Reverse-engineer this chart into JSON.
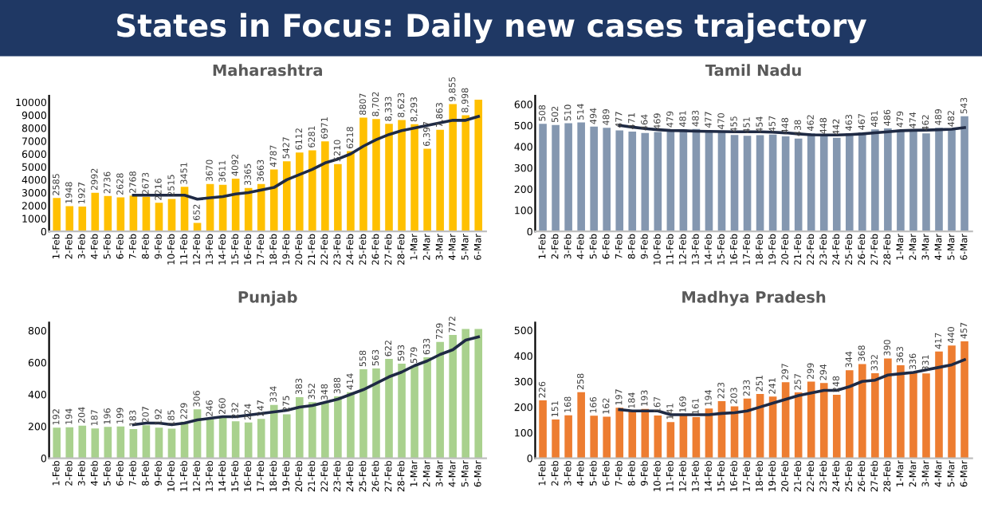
{
  "chart_data": [
    {
      "type": "other",
      "title": "States in Focus: Daily new cases trajectory",
      "color": "#1f3864"
    },
    {
      "type": "bar",
      "title": "Maharashtra",
      "categories": [
        "1-Feb",
        "2-Feb",
        "3-Feb",
        "4-Feb",
        "5-Feb",
        "6-Feb",
        "7-Feb",
        "8-Feb",
        "9-Feb",
        "10-Feb",
        "11-Feb",
        "12-Feb",
        "13-Feb",
        "14-Feb",
        "15-Feb",
        "16-Feb",
        "17-Feb",
        "18-Feb",
        "19-Feb",
        "20-Feb",
        "21-Feb",
        "22-Feb",
        "23-Feb",
        "24-Feb",
        "25-Feb",
        "26-Feb",
        "27-Feb",
        "28-Feb",
        "1-Mar",
        "2-Mar",
        "3-Mar",
        "4-Mar",
        "5-Mar",
        "6-Mar"
      ],
      "ylim": [
        0,
        10500
      ],
      "yticks": [
        0,
        1000,
        2000,
        3000,
        4000,
        5000,
        6000,
        7000,
        8000,
        9000,
        10000
      ],
      "series": [
        {
          "type": "bar",
          "color": "#ffc000",
          "values": [
            2585,
            1948,
            1927,
            2992,
            2736,
            2628,
            2768,
            2673,
            2216,
            2515,
            3451,
            652,
            3670,
            3611,
            4092,
            3365,
            3663,
            4787,
            5427,
            6112,
            6281,
            6971,
            5210,
            6218,
            8807,
            8702,
            8333,
            8623,
            8293,
            6397,
            7863,
            9855,
            8998,
            10200
          ],
          "value_labels": [
            "2585",
            "1948",
            "1927",
            "2992",
            "2736",
            "2628",
            "2768",
            "2673",
            "2216",
            "2515",
            "3451",
            "652",
            "3670",
            "3611",
            "4092",
            "3365",
            "3663",
            "4787",
            "5427",
            "6112",
            "6281",
            "6971",
            "5210",
            "6218",
            "8807",
            "8,702",
            "8,333",
            "8,623",
            "8,293",
            "6,397",
            "7,863",
            "9,855",
            "8,998",
            null
          ]
        },
        {
          "type": "line",
          "color": "#1f2a44",
          "values": [
            null,
            null,
            null,
            null,
            null,
            null,
            2800,
            2800,
            2800,
            2800,
            2800,
            2500,
            2600,
            2700,
            2900,
            3000,
            3200,
            3400,
            4000,
            4400,
            4800,
            5300,
            5600,
            6000,
            6600,
            7100,
            7500,
            7800,
            8000,
            8200,
            8400,
            8600,
            8600,
            8900
          ]
        }
      ]
    },
    {
      "type": "bar",
      "title": "Tamil Nadu",
      "categories": [
        "1-Feb",
        "2-Feb",
        "3-Feb",
        "4-Feb",
        "5-Feb",
        "6-Feb",
        "7-Feb",
        "8-Feb",
        "9-Feb",
        "10-Feb",
        "11-Feb",
        "12-Feb",
        "13-Feb",
        "14-Feb",
        "15-Feb",
        "16-Feb",
        "17-Feb",
        "18-Feb",
        "19-Feb",
        "20-Feb",
        "21-Feb",
        "22-Feb",
        "23-Feb",
        "24-Feb",
        "25-Feb",
        "26-Feb",
        "27-Feb",
        "28-Feb",
        "1-Mar",
        "2-Mar",
        "3-Mar",
        "4-Mar",
        "5-Mar",
        "6-Mar"
      ],
      "ylim": [
        0,
        640
      ],
      "yticks": [
        0,
        100,
        200,
        300,
        400,
        500,
        600
      ],
      "series": [
        {
          "type": "bar",
          "color": "#8497b0",
          "values": [
            508,
            502,
            510,
            514,
            494,
            489,
            477,
            471,
            464,
            469,
            479,
            481,
            483,
            477,
            470,
            455,
            451,
            454,
            457,
            448,
            438,
            462,
            448,
            442,
            463,
            467,
            481,
            486,
            479,
            474,
            462,
            489,
            482,
            543
          ],
          "value_labels": [
            "508",
            "502",
            "510",
            "514",
            "494",
            "489",
            "477",
            "471",
            "464",
            "469",
            "479",
            "481",
            "483",
            "477",
            "470",
            "455",
            "451",
            "454",
            "457",
            "448",
            "438",
            "462",
            "448",
            "442",
            "463",
            "467",
            "481",
            "486",
            "479",
            "474",
            "462",
            "489",
            "482",
            "543"
          ]
        },
        {
          "type": "line",
          "color": "#1f2a44",
          "values": [
            null,
            null,
            null,
            null,
            null,
            null,
            500,
            492,
            485,
            480,
            476,
            475,
            473,
            472,
            471,
            470,
            470,
            470,
            468,
            465,
            460,
            456,
            455,
            455,
            457,
            460,
            465,
            470,
            475,
            477,
            478,
            480,
            482,
            490
          ]
        }
      ]
    },
    {
      "type": "bar",
      "title": "Punjab",
      "categories": [
        "1-Feb",
        "2-Feb",
        "3-Feb",
        "4-Feb",
        "5-Feb",
        "6-Feb",
        "7-Feb",
        "8-Feb",
        "9-Feb",
        "10-Feb",
        "11-Feb",
        "12-Feb",
        "13-Feb",
        "14-Feb",
        "15-Feb",
        "16-Feb",
        "17-Feb",
        "18-Feb",
        "19-Feb",
        "20-Feb",
        "21-Feb",
        "22-Feb",
        "23-Feb",
        "24-Feb",
        "25-Feb",
        "26-Feb",
        "27-Feb",
        "28-Feb",
        "1-Mar",
        "2-Mar",
        "3-Mar",
        "4-Mar",
        "5-Mar",
        "6-Mar"
      ],
      "ylim": [
        0,
        850
      ],
      "yticks": [
        0,
        200,
        400,
        600,
        800
      ],
      "series": [
        {
          "type": "bar",
          "color": "#a9d18e",
          "values": [
            192,
            194,
            204,
            187,
            196,
            199,
            183,
            207,
            192,
            185,
            229,
            306,
            246,
            260,
            232,
            224,
            247,
            334,
            275,
            383,
            352,
            348,
            388,
            414,
            558,
            563,
            622,
            593,
            579,
            633,
            729,
            772,
            810,
            810
          ],
          "value_labels": [
            "192",
            "194",
            "204",
            "187",
            "196",
            "199",
            "183",
            "207",
            "192",
            "185",
            "229",
            "306",
            "246",
            "260",
            "232",
            "224",
            "247",
            "334",
            "275",
            "383",
            "352",
            "348",
            "388",
            "414",
            "558",
            "563",
            "622",
            "593",
            "579",
            "633",
            "729",
            "772",
            null,
            null
          ]
        },
        {
          "type": "line",
          "color": "#1f2a44",
          "values": [
            null,
            null,
            null,
            null,
            null,
            null,
            210,
            220,
            220,
            210,
            220,
            240,
            250,
            260,
            260,
            270,
            280,
            290,
            300,
            320,
            330,
            350,
            370,
            400,
            430,
            470,
            510,
            540,
            580,
            610,
            650,
            680,
            740,
            760
          ]
        }
      ]
    },
    {
      "type": "bar",
      "title": "Madhya Pradesh",
      "categories": [
        "1-Feb",
        "2-Feb",
        "3-Feb",
        "4-Feb",
        "5-Feb",
        "6-Feb",
        "7-Feb",
        "8-Feb",
        "9-Feb",
        "10-Feb",
        "11-Feb",
        "12-Feb",
        "13-Feb",
        "14-Feb",
        "15-Feb",
        "16-Feb",
        "17-Feb",
        "18-Feb",
        "19-Feb",
        "20-Feb",
        "21-Feb",
        "22-Feb",
        "23-Feb",
        "24-Feb",
        "25-Feb",
        "26-Feb",
        "27-Feb",
        "28-Feb",
        "1-Mar",
        "2-Mar",
        "3-Mar",
        "4-Mar",
        "5-Mar",
        "6-Mar"
      ],
      "ylim": [
        0,
        530
      ],
      "yticks": [
        0,
        100,
        200,
        300,
        400,
        500
      ],
      "series": [
        {
          "type": "bar",
          "color": "#ed7d31",
          "values": [
            226,
            151,
            168,
            258,
            166,
            162,
            197,
            184,
            193,
            167,
            141,
            169,
            161,
            194,
            223,
            203,
            233,
            251,
            241,
            297,
            257,
            299,
            294,
            248,
            344,
            368,
            332,
            390,
            363,
            336,
            331,
            417,
            440,
            457
          ],
          "value_labels": [
            "226",
            "151",
            "168",
            "258",
            "166",
            "162",
            "197",
            "184",
            "193",
            "167",
            "141",
            "169",
            "161",
            "194",
            "223",
            "203",
            "233",
            "251",
            "241",
            "297",
            "257",
            "299",
            "294",
            "248",
            "344",
            "368",
            "332",
            "390",
            "363",
            "336",
            "331",
            "417",
            "440",
            "457"
          ]
        },
        {
          "type": "line",
          "color": "#1f2a44",
          "values": [
            null,
            null,
            null,
            null,
            null,
            null,
            190,
            185,
            185,
            185,
            170,
            170,
            170,
            170,
            175,
            178,
            185,
            200,
            215,
            230,
            245,
            255,
            265,
            265,
            280,
            300,
            305,
            325,
            330,
            335,
            345,
            355,
            365,
            385
          ]
        }
      ]
    }
  ]
}
